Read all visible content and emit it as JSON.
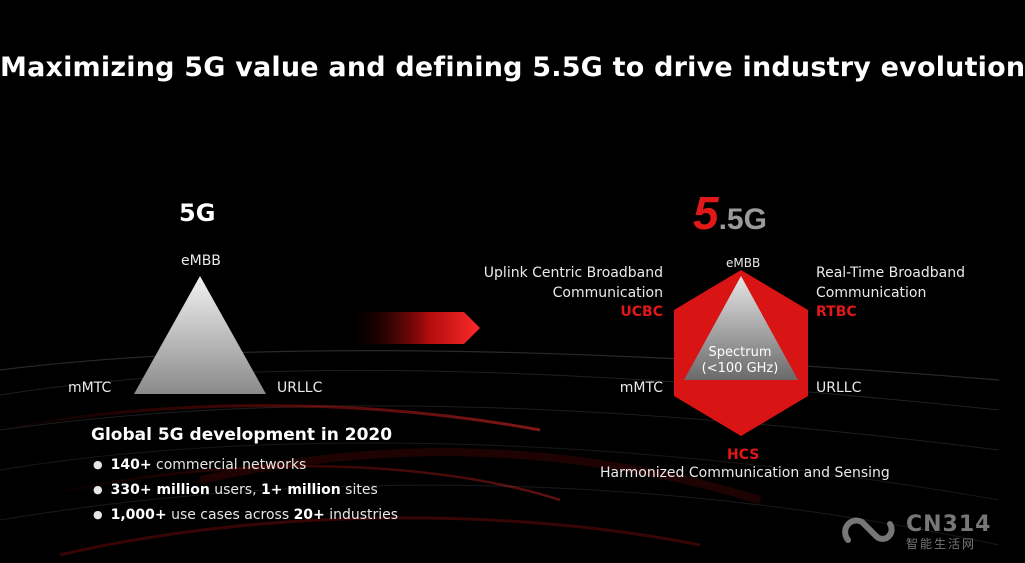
{
  "title": "Maximizing 5G value and defining 5.5G to drive industry evolution",
  "left": {
    "heading": "5G",
    "top_label": "eMBB",
    "left_label": "mMTC",
    "right_label": "URLLC"
  },
  "right": {
    "logo_big": "5",
    "logo_small": ".5G",
    "top_label": "eMBB",
    "left_label": "mMTC",
    "right_label": "URLLC",
    "center_line1": "Spectrum",
    "center_line2": "(<100 GHz)",
    "ucbc_line1": "Uplink Centric Broadband",
    "ucbc_line2": "Communication",
    "ucbc_abbr": "UCBC",
    "rtbc_line1": "Real-Time Broadband",
    "rtbc_line2": "Communication",
    "rtbc_abbr": "RTBC",
    "hcs_abbr": "HCS",
    "hcs_full": "Harmonized Communication and Sensing"
  },
  "stats": {
    "title": "Global 5G development in 2020",
    "items": [
      {
        "bold": "140+",
        "rest": " commercial networks"
      },
      {
        "bold": "330+ million",
        "rest": " users, ",
        "bold2": "1+ million",
        "rest2": " sites"
      },
      {
        "bold": "1,000+",
        "rest": " use cases across ",
        "bold2": "20+",
        "rest2": " industries"
      }
    ]
  },
  "watermark": {
    "main": "CN314",
    "sub": "智能生活网"
  },
  "colors": {
    "background": "#000000",
    "accent_red": "#e01818",
    "text": "#ffffff"
  }
}
